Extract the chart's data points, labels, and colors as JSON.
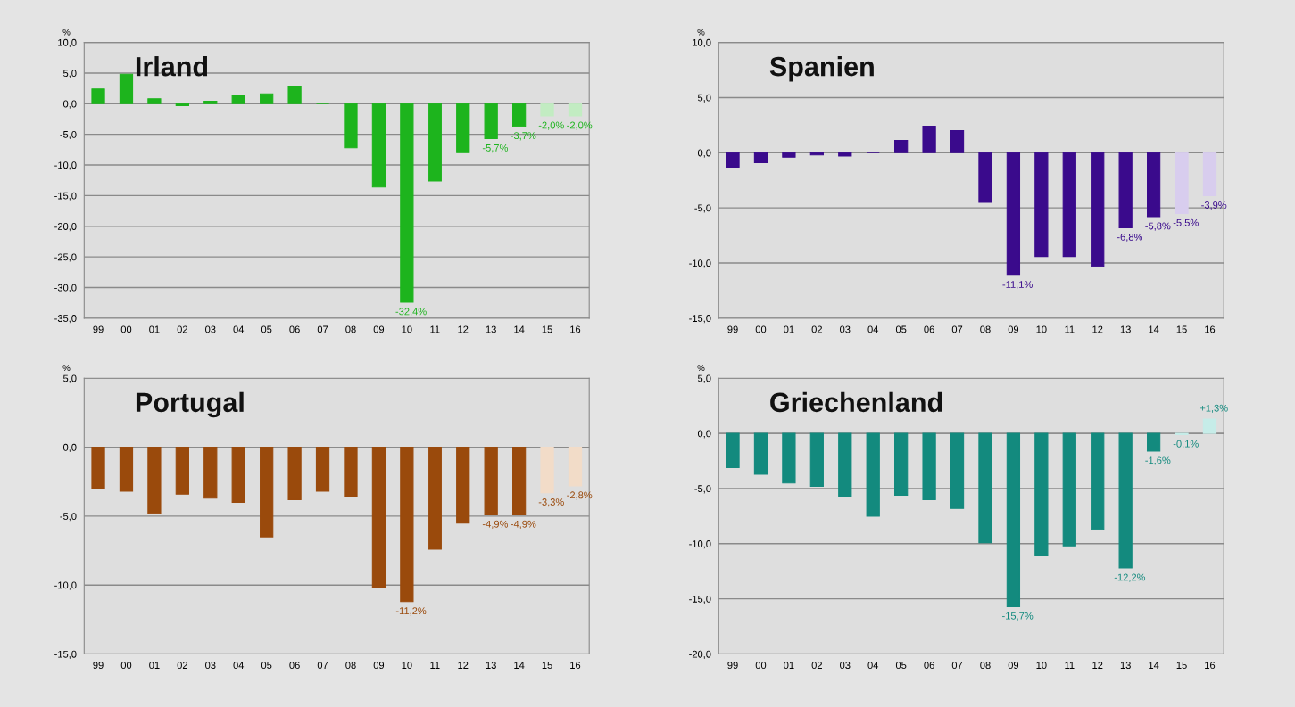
{
  "chart_data": [
    {
      "type": "bar",
      "title": "Irland",
      "ylabel": "%",
      "grid": "y",
      "categories": [
        "99",
        "00",
        "01",
        "02",
        "03",
        "04",
        "05",
        "06",
        "07",
        "08",
        "09",
        "10",
        "11",
        "12",
        "13",
        "14",
        "15",
        "16"
      ],
      "values": [
        2.4,
        4.8,
        0.8,
        -0.3,
        0.4,
        1.4,
        1.6,
        2.8,
        0.0,
        -7.2,
        -13.6,
        -32.4,
        -12.6,
        -8.0,
        -5.7,
        -3.7,
        -2.0,
        -2.0
      ],
      "colors": [
        "#1db41d",
        "#1db41d",
        "#1db41d",
        "#1db41d",
        "#1db41d",
        "#1db41d",
        "#1db41d",
        "#1db41d",
        "#1db41d",
        "#1db41d",
        "#1db41d",
        "#1db41d",
        "#1db41d",
        "#1db41d",
        "#1db41d",
        "#1db41d",
        "#c2ecc2",
        "#c2ecc2"
      ],
      "value_labels": [
        null,
        null,
        null,
        null,
        null,
        null,
        null,
        null,
        null,
        null,
        null,
        "-32,4%",
        null,
        null,
        "-5,7%",
        "-3,7%",
        "-2,0%",
        "-2,0%"
      ],
      "ylim": [
        -35,
        10
      ],
      "yticks": [
        {
          "value": -35,
          "label": "-35,0"
        },
        {
          "value": -30,
          "label": "-30,0"
        },
        {
          "value": -25,
          "label": "-25,0"
        },
        {
          "value": -20,
          "label": "-20,0"
        },
        {
          "value": -15,
          "label": "-15,0"
        },
        {
          "value": -10,
          "label": "-10,0"
        },
        {
          "value": -5,
          "label": "-5,0"
        },
        {
          "value": 0,
          "label": "0,0"
        },
        {
          "value": 5,
          "label": "5,0"
        },
        {
          "value": 10,
          "label": "10,0"
        }
      ]
    },
    {
      "type": "bar",
      "title": "Spanien",
      "ylabel": "%",
      "grid": "y",
      "categories": [
        "99",
        "00",
        "01",
        "02",
        "03",
        "04",
        "05",
        "06",
        "07",
        "08",
        "09",
        "10",
        "11",
        "12",
        "13",
        "14",
        "15",
        "16"
      ],
      "values": [
        -1.3,
        -0.9,
        -0.4,
        -0.2,
        -0.3,
        0.0,
        1.1,
        2.4,
        2.0,
        -4.5,
        -11.1,
        -9.4,
        -9.4,
        -10.3,
        -6.8,
        -5.8,
        -5.5,
        -3.9
      ],
      "colors": [
        "#3a0a8c",
        "#3a0a8c",
        "#3a0a8c",
        "#3a0a8c",
        "#3a0a8c",
        "#3a0a8c",
        "#3a0a8c",
        "#3a0a8c",
        "#3a0a8c",
        "#3a0a8c",
        "#3a0a8c",
        "#3a0a8c",
        "#3a0a8c",
        "#3a0a8c",
        "#3a0a8c",
        "#3a0a8c",
        "#d8cdee",
        "#d8cdee"
      ],
      "value_labels": [
        null,
        null,
        null,
        null,
        null,
        null,
        null,
        null,
        null,
        null,
        "-11,1%",
        null,
        null,
        null,
        "-6,8%",
        "-5,8%",
        "-5,5%",
        "-3,9%"
      ],
      "ylim": [
        -15,
        10
      ],
      "yticks": [
        {
          "value": -15,
          "label": "-15,0"
        },
        {
          "value": -10,
          "label": "-10,0"
        },
        {
          "value": -5,
          "label": "-5,0"
        },
        {
          "value": 0,
          "label": "0,0"
        },
        {
          "value": 5,
          "label": "5,0"
        },
        {
          "value": 10,
          "label": "10,0"
        }
      ]
    },
    {
      "type": "bar",
      "title": "Portugal",
      "ylabel": "%",
      "grid": "y",
      "categories": [
        "99",
        "00",
        "01",
        "02",
        "03",
        "04",
        "05",
        "06",
        "07",
        "08",
        "09",
        "10",
        "11",
        "12",
        "13",
        "14",
        "15",
        "16"
      ],
      "values": [
        -3.0,
        -3.2,
        -4.8,
        -3.4,
        -3.7,
        -4.0,
        -6.5,
        -3.8,
        -3.2,
        -3.6,
        -10.2,
        -11.2,
        -7.4,
        -5.5,
        -4.9,
        -4.9,
        -3.3,
        -2.8
      ],
      "colors": [
        "#9a4a0c",
        "#9a4a0c",
        "#9a4a0c",
        "#9a4a0c",
        "#9a4a0c",
        "#9a4a0c",
        "#9a4a0c",
        "#9a4a0c",
        "#9a4a0c",
        "#9a4a0c",
        "#9a4a0c",
        "#9a4a0c",
        "#9a4a0c",
        "#9a4a0c",
        "#9a4a0c",
        "#9a4a0c",
        "#f2dcc8",
        "#f2dcc8"
      ],
      "value_labels": [
        null,
        null,
        null,
        null,
        null,
        null,
        null,
        null,
        null,
        null,
        null,
        "-11,2%",
        null,
        null,
        "-4,9%",
        "-4,9%",
        "-3,3%",
        "-2,8%"
      ],
      "ylim": [
        -15,
        5
      ],
      "yticks": [
        {
          "value": -15,
          "label": "-15,0"
        },
        {
          "value": -10,
          "label": "-10,0"
        },
        {
          "value": -5,
          "label": "-5,0"
        },
        {
          "value": 0,
          "label": "0,0"
        },
        {
          "value": 5,
          "label": "5,0"
        }
      ]
    },
    {
      "type": "bar",
      "title": "Griechenland",
      "ylabel": "%",
      "grid": "y",
      "categories": [
        "99",
        "00",
        "01",
        "02",
        "03",
        "04",
        "05",
        "06",
        "07",
        "08",
        "09",
        "10",
        "11",
        "12",
        "13",
        "14",
        "15",
        "16"
      ],
      "values": [
        -3.1,
        -3.7,
        -4.5,
        -4.8,
        -5.7,
        -7.5,
        -5.6,
        -6.0,
        -6.8,
        -9.9,
        -15.7,
        -11.1,
        -10.2,
        -8.7,
        -12.2,
        -1.6,
        -0.1,
        1.3
      ],
      "colors": [
        "#138a7e",
        "#138a7e",
        "#138a7e",
        "#138a7e",
        "#138a7e",
        "#138a7e",
        "#138a7e",
        "#138a7e",
        "#138a7e",
        "#138a7e",
        "#138a7e",
        "#138a7e",
        "#138a7e",
        "#138a7e",
        "#138a7e",
        "#138a7e",
        "#c6ece8",
        "#c6ece8"
      ],
      "value_labels": [
        null,
        null,
        null,
        null,
        null,
        null,
        null,
        null,
        null,
        null,
        "-15,7%",
        null,
        null,
        null,
        "-12,2%",
        "-1,6%",
        "-0,1%",
        "+1,3%"
      ],
      "ylim": [
        -20,
        5
      ],
      "yticks": [
        {
          "value": -20,
          "label": "-20,0"
        },
        {
          "value": -15,
          "label": "-15,0"
        },
        {
          "value": -10,
          "label": "-10,0"
        },
        {
          "value": -5,
          "label": "-5,0"
        },
        {
          "value": 0,
          "label": "0,0"
        },
        {
          "value": 5,
          "label": "5,0"
        }
      ]
    }
  ]
}
